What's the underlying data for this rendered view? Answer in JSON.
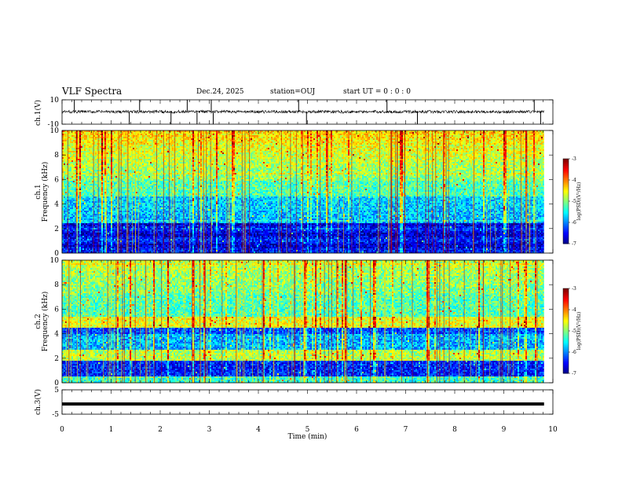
{
  "header": {
    "title": "VLF Spectra",
    "date": "Dec.24, 2025",
    "station_text": "station=OUJ",
    "start_ut_text": "start  UT =   0 : 0  : 0"
  },
  "chart_data": [
    {
      "type": "line",
      "name": "ch1-waveform",
      "ylabel": "ch.1(V)",
      "ylim": [
        -10,
        10
      ],
      "yticks": [
        "10",
        "-10"
      ],
      "xlim": [
        0,
        10
      ],
      "data_end_min": 9.82,
      "baseline_v": 0.2,
      "noise_amplitude_v": 1.2,
      "spike_times_min": [
        0.25,
        1.37,
        1.58,
        2.22,
        2.55,
        2.75,
        3.04,
        3.08,
        4.82,
        4.98,
        6.62,
        7.24,
        9.62,
        9.75
      ],
      "spike_peak_v": 10
    },
    {
      "type": "heatmap",
      "name": "ch1-spectrogram",
      "ylabel_top": "ch.1",
      "ylabel": "Frequency (kHz)",
      "ylim": [
        0,
        10
      ],
      "yticks": [
        "0",
        "2",
        "4",
        "6",
        "8",
        "10"
      ],
      "xlim": [
        0,
        10
      ],
      "data_end_min": 9.82,
      "colorbar": {
        "label": "log(PSD)(V²/Hz)",
        "range": [
          -7,
          -3
        ],
        "ticks": [
          "-3",
          "-4",
          "-5",
          "-6",
          "-7"
        ]
      }
    },
    {
      "type": "heatmap",
      "name": "ch2-spectrogram",
      "ylabel_top": "ch.2",
      "ylabel": "Frequency (kHz)",
      "ylim": [
        0,
        10
      ],
      "yticks": [
        "0",
        "2",
        "4",
        "6",
        "8",
        "10"
      ],
      "xlim": [
        0,
        10
      ],
      "data_end_min": 9.82,
      "colorbar": {
        "label": "log(PSD)(V²/Hz)",
        "range": [
          -7,
          -3
        ],
        "ticks": [
          "-3",
          "-4",
          "-5",
          "-6",
          "-7"
        ]
      }
    },
    {
      "type": "line",
      "name": "ch3-waveform",
      "ylabel": "ch.3(V)",
      "ylim": [
        -5,
        5
      ],
      "yticks": [
        "5",
        "-5"
      ],
      "xlim": [
        0,
        10
      ],
      "data_end_min": 9.82,
      "constant_v": -0.8
    }
  ],
  "xaxis": {
    "label": "Time  (min)",
    "ticks": [
      "0",
      "1",
      "2",
      "3",
      "4",
      "5",
      "6",
      "7",
      "8",
      "9",
      "10"
    ]
  }
}
